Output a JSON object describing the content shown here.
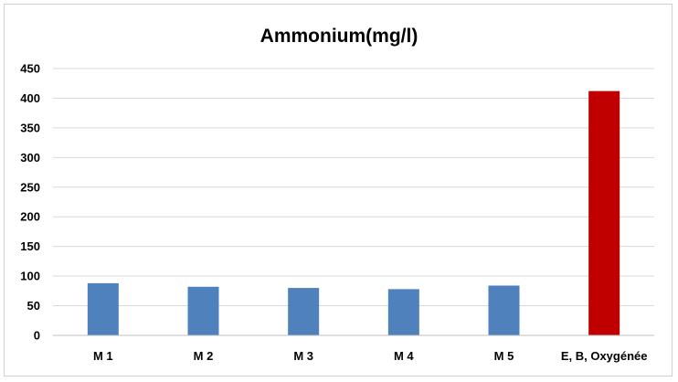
{
  "chart_data": {
    "type": "bar",
    "title": "Ammonium(mg/l)",
    "xlabel": "",
    "ylabel": "",
    "categories": [
      "M 1",
      "M 2",
      "M 3",
      "M 4",
      "M 5",
      "E, B, Oxygénée"
    ],
    "values": [
      88,
      82,
      80,
      78,
      84,
      412
    ],
    "colors": [
      "#4f81bd",
      "#4f81bd",
      "#4f81bd",
      "#4f81bd",
      "#4f81bd",
      "#c00000"
    ],
    "ylim": [
      0,
      450
    ],
    "yticks": [
      "0",
      "50",
      "100",
      "150",
      "200",
      "250",
      "300",
      "350",
      "400",
      "450"
    ],
    "grid": true,
    "legend": "none"
  }
}
